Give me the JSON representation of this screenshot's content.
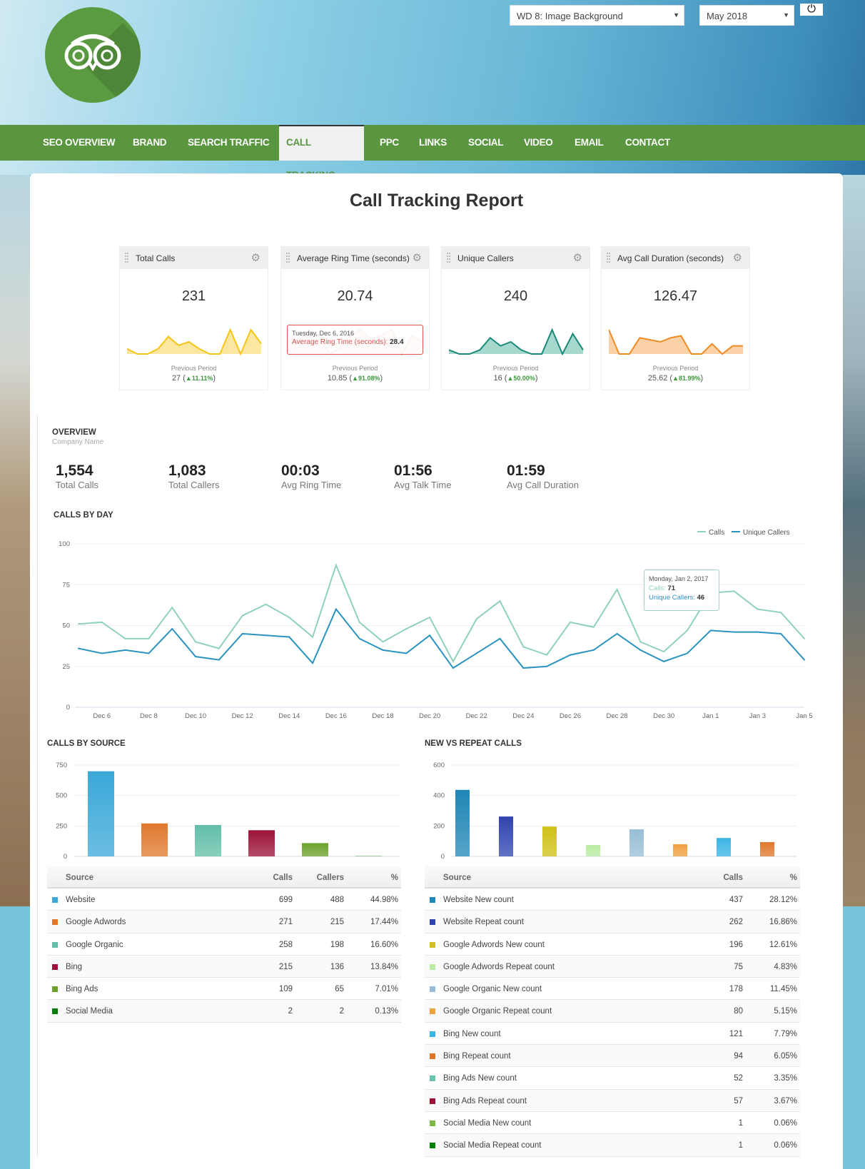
{
  "header": {
    "report_select": "WD 8: Image Background",
    "month_select": "May 2018",
    "power_icon": "power-icon",
    "logo": "owl-logo"
  },
  "nav": [
    "SEO OVERVIEW",
    "BRAND",
    "SEARCH TRAFFIC",
    "CALL TRACKING",
    "PPC",
    "LINKS",
    "SOCIAL",
    "VIDEO",
    "EMAIL",
    "CONTACT"
  ],
  "nav_active": "CALL TRACKING",
  "page_title": "Call Tracking Report",
  "widgets": [
    {
      "title": "Total Calls",
      "value": "231",
      "prev_label": "Previous Period",
      "prev_value": "27",
      "change": "▲11.11%",
      "color": "#f5c518",
      "fill": "#fbe7a0",
      "spark": [
        3,
        0,
        0,
        3,
        10,
        5,
        7,
        3,
        0,
        0,
        14,
        0,
        14,
        6
      ]
    },
    {
      "title": "Average Ring Time (seconds)",
      "value": "20.74",
      "prev_label": "Previous Period",
      "prev_value": "10.85",
      "change": "▲91.08%",
      "color": "#d9534f",
      "fill": "#f5c8c7",
      "spark": [
        6,
        4,
        8,
        6,
        0,
        2,
        6,
        8,
        5,
        6,
        8,
        0,
        6,
        4
      ],
      "tooltip": {
        "date": "Tuesday, Dec 6, 2016",
        "label": "Average Ring Time (seconds)",
        "value": "28.4"
      }
    },
    {
      "title": "Unique Callers",
      "value": "240",
      "prev_label": "Previous Period",
      "prev_value": "16",
      "change": "▲50.00%",
      "color": "#1a8a78",
      "fill": "#a6d8cd",
      "spark": [
        2,
        0,
        0,
        2,
        8,
        4,
        6,
        2,
        0,
        0,
        12,
        0,
        10,
        2
      ]
    },
    {
      "title": "Avg Call Duration (seconds)",
      "value": "126.47",
      "prev_label": "Previous Period",
      "prev_value": "25.62",
      "change": "▲81.99%",
      "color": "#f08a24",
      "fill": "#fbd2a8",
      "spark": [
        12,
        0,
        0,
        8,
        7,
        6,
        8,
        9,
        0,
        0,
        5,
        0,
        4,
        4
      ]
    }
  ],
  "overview": {
    "title": "OVERVIEW",
    "subtitle": "Company Name",
    "stats": [
      {
        "value": "1,554",
        "label": "Total Calls"
      },
      {
        "value": "1,083",
        "label": "Total Callers"
      },
      {
        "value": "00:03",
        "label": "Avg Ring Time"
      },
      {
        "value": "01:56",
        "label": "Avg Talk Time"
      },
      {
        "value": "01:59",
        "label": "Avg Call Duration"
      }
    ]
  },
  "chart_data": [
    {
      "type": "line",
      "title": "CALLS BY DAY",
      "ylim": [
        0,
        100
      ],
      "yticks": [
        0,
        25,
        50,
        75,
        100
      ],
      "x": [
        "Dec 5",
        "Dec 6",
        "Dec 7",
        "Dec 8",
        "Dec 9",
        "Dec 10",
        "Dec 11",
        "Dec 12",
        "Dec 13",
        "Dec 14",
        "Dec 15",
        "Dec 16",
        "Dec 17",
        "Dec 18",
        "Dec 19",
        "Dec 20",
        "Dec 21",
        "Dec 22",
        "Dec 23",
        "Dec 24",
        "Dec 25",
        "Dec 26",
        "Dec 27",
        "Dec 28",
        "Dec 29",
        "Dec 30",
        "Dec 31",
        "Jan 1",
        "Jan 2",
        "Jan 3",
        "Jan 4",
        "Jan 5"
      ],
      "xtick_labels": [
        "Dec 6",
        "Dec 8",
        "Dec 10",
        "Dec 12",
        "Dec 14",
        "Dec 16",
        "Dec 18",
        "Dec 20",
        "Dec 22",
        "Dec 24",
        "Dec 26",
        "Dec 28",
        "Dec 30",
        "Jan 1",
        "Jan 3",
        "Jan 5"
      ],
      "legend": "top-right",
      "series": [
        {
          "name": "Calls",
          "color": "#8fd1bd",
          "values": [
            51,
            52,
            42,
            42,
            61,
            40,
            36,
            56,
            63,
            55,
            43,
            87,
            52,
            40,
            48,
            55,
            28,
            54,
            65,
            37,
            32,
            52,
            49,
            72,
            40,
            34,
            47,
            70,
            71,
            60,
            58,
            42
          ]
        },
        {
          "name": "Unique Callers",
          "color": "#2a93c0",
          "values": [
            36,
            33,
            35,
            33,
            48,
            31,
            29,
            45,
            44,
            43,
            27,
            60,
            42,
            35,
            33,
            44,
            24,
            33,
            42,
            24,
            25,
            32,
            35,
            45,
            35,
            28,
            33,
            47,
            46,
            46,
            45,
            29
          ]
        }
      ],
      "tooltip": {
        "date": "Monday, Jan 2, 2017",
        "calls_label": "Calls:",
        "calls": "71",
        "unique_label": "Unique Callers:",
        "unique": "46"
      }
    },
    {
      "type": "bar",
      "title": "CALLS BY SOURCE",
      "ylim": [
        0,
        750
      ],
      "yticks": [
        0,
        250,
        500,
        750
      ],
      "categories": [
        "Website",
        "Google Adwords",
        "Google Organic",
        "Bing",
        "Bing Ads",
        "Social Media"
      ],
      "values": [
        699,
        271,
        258,
        215,
        109,
        2
      ],
      "colors": [
        "#3aa8d8",
        "#e0782c",
        "#62bfa8",
        "#9b1238",
        "#6aa12a",
        "#008000"
      ]
    },
    {
      "type": "bar",
      "title": "NEW VS REPEAT CALLS",
      "ylim": [
        0,
        600
      ],
      "yticks": [
        0,
        200,
        400,
        600
      ],
      "categories": [
        "Website New count",
        "Website Repeat count",
        "Google Adwords New count",
        "Google Adwords Repeat count",
        "Google Organic New count",
        "Google Organic Repeat count",
        "Bing New count",
        "Bing Repeat count",
        "Bing Ads New count",
        "Bing Ads Repeat count",
        "Social Media New count",
        "Social Media Repeat count"
      ],
      "values": [
        437,
        262,
        196,
        75,
        178,
        80,
        121,
        94,
        52,
        57,
        1,
        1
      ],
      "colors": [
        "#1f86b5",
        "#2e43b0",
        "#d0c018",
        "#b8eca0",
        "#98bed6",
        "#f0a040",
        "#3ab4e4",
        "#e0782c",
        "#6ac2ae",
        "#9b1238",
        "#7ab648",
        "#008000"
      ]
    }
  ],
  "source_table": {
    "headers": [
      "Source",
      "Calls",
      "Callers",
      "%"
    ],
    "rows": [
      [
        "Website",
        "699",
        "488",
        "44.98%"
      ],
      [
        "Google Adwords",
        "271",
        "215",
        "17.44%"
      ],
      [
        "Google Organic",
        "258",
        "198",
        "16.60%"
      ],
      [
        "Bing",
        "215",
        "136",
        "13.84%"
      ],
      [
        "Bing Ads",
        "109",
        "65",
        "7.01%"
      ],
      [
        "Social Media",
        "2",
        "2",
        "0.13%"
      ]
    ]
  },
  "repeat_table": {
    "headers": [
      "Source",
      "Calls",
      "%"
    ],
    "rows": [
      [
        "Website New count",
        "437",
        "28.12%"
      ],
      [
        "Website Repeat count",
        "262",
        "16.86%"
      ],
      [
        "Google Adwords New count",
        "196",
        "12.61%"
      ],
      [
        "Google Adwords Repeat count",
        "75",
        "4.83%"
      ],
      [
        "Google Organic New count",
        "178",
        "11.45%"
      ],
      [
        "Google Organic Repeat count",
        "80",
        "5.15%"
      ],
      [
        "Bing New count",
        "121",
        "7.79%"
      ],
      [
        "Bing Repeat count",
        "94",
        "6.05%"
      ],
      [
        "Bing Ads New count",
        "52",
        "3.35%"
      ],
      [
        "Bing Ads Repeat count",
        "57",
        "3.67%"
      ],
      [
        "Social Media New count",
        "1",
        "0.06%"
      ],
      [
        "Social Media Repeat count",
        "1",
        "0.06%"
      ]
    ]
  }
}
